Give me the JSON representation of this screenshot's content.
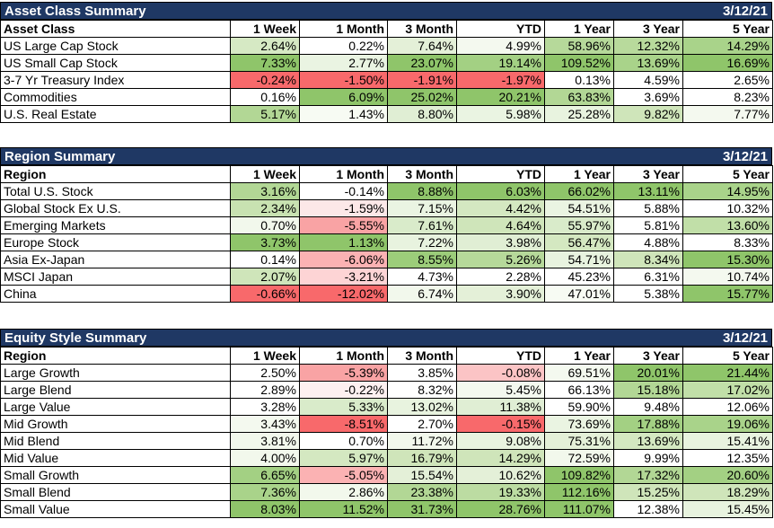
{
  "tables": [
    {
      "title": "Asset Class Summary",
      "date": "3/12/21",
      "headers": [
        "Asset Class",
        "1 Week",
        "1 Month",
        "3 Month",
        "YTD",
        "1 Year",
        "3 Year",
        "5 Year"
      ],
      "rows": [
        {
          "label": "US Large Cap Stock",
          "cells": [
            {
              "v": "2.64%",
              "c": "#d6e9c4"
            },
            {
              "v": "0.22%",
              "c": "#ffffff"
            },
            {
              "v": "7.64%",
              "c": "#e4f0d8"
            },
            {
              "v": "4.99%",
              "c": "#f4f9ef"
            },
            {
              "v": "58.96%",
              "c": "#b6d99a"
            },
            {
              "v": "12.32%",
              "c": "#b8da9c"
            },
            {
              "v": "14.29%",
              "c": "#a9d38a"
            }
          ]
        },
        {
          "label": "US Small Cap Stock",
          "cells": [
            {
              "v": "7.33%",
              "c": "#8fc56a"
            },
            {
              "v": "2.77%",
              "c": "#eaf4e2"
            },
            {
              "v": "23.07%",
              "c": "#8fc56a"
            },
            {
              "v": "19.14%",
              "c": "#a3d083"
            },
            {
              "v": "109.52%",
              "c": "#8fc56a"
            },
            {
              "v": "13.69%",
              "c": "#a9d38a"
            },
            {
              "v": "16.69%",
              "c": "#8fc56a"
            }
          ]
        },
        {
          "label": "3-7 Yr Treasury Index",
          "cells": [
            {
              "v": "-0.24%",
              "c": "#f8696b"
            },
            {
              "v": "-1.50%",
              "c": "#f8696b"
            },
            {
              "v": "-1.91%",
              "c": "#f8696b"
            },
            {
              "v": "-1.97%",
              "c": "#f8696b"
            },
            {
              "v": "0.13%",
              "c": "#ffffff"
            },
            {
              "v": "4.59%",
              "c": "#ffffff"
            },
            {
              "v": "2.65%",
              "c": "#ffffff"
            }
          ]
        },
        {
          "label": "Commodities",
          "cells": [
            {
              "v": "0.16%",
              "c": "#ffffff"
            },
            {
              "v": "6.09%",
              "c": "#8fc56a"
            },
            {
              "v": "25.02%",
              "c": "#8fc56a"
            },
            {
              "v": "20.21%",
              "c": "#8fc56a"
            },
            {
              "v": "63.83%",
              "c": "#b2d795"
            },
            {
              "v": "3.69%",
              "c": "#ffffff"
            },
            {
              "v": "8.23%",
              "c": "#ffffff"
            }
          ]
        },
        {
          "label": "U.S. Real Estate",
          "cells": [
            {
              "v": "5.17%",
              "c": "#b2d795"
            },
            {
              "v": "1.43%",
              "c": "#f7fbf3"
            },
            {
              "v": "8.80%",
              "c": "#e0eed4"
            },
            {
              "v": "5.98%",
              "c": "#eaf4e2"
            },
            {
              "v": "25.28%",
              "c": "#e8f3df"
            },
            {
              "v": "9.82%",
              "c": "#cfe5ba"
            },
            {
              "v": "7.77%",
              "c": "#f4f9ef"
            }
          ]
        }
      ]
    },
    {
      "title": "Region Summary",
      "date": "3/12/21",
      "headers": [
        "Region",
        "1 Week",
        "1 Month",
        "3 Month",
        "YTD",
        "1 Year",
        "3 Year",
        "5 Year"
      ],
      "rows": [
        {
          "label": "Total U.S. Stock",
          "cells": [
            {
              "v": "3.16%",
              "c": "#b2d795"
            },
            {
              "v": "-0.14%",
              "c": "#ffffff"
            },
            {
              "v": "8.88%",
              "c": "#8fc56a"
            },
            {
              "v": "6.03%",
              "c": "#8fc56a"
            },
            {
              "v": "66.02%",
              "c": "#8fc56a"
            },
            {
              "v": "13.11%",
              "c": "#8fc56a"
            },
            {
              "v": "14.95%",
              "c": "#a9d38a"
            }
          ]
        },
        {
          "label": "Global Stock Ex U.S.",
          "cells": [
            {
              "v": "2.34%",
              "c": "#c8e2b1"
            },
            {
              "v": "-1.59%",
              "c": "#fce8e8"
            },
            {
              "v": "7.15%",
              "c": "#eaf4e2"
            },
            {
              "v": "4.42%",
              "c": "#d4e8c1"
            },
            {
              "v": "54.51%",
              "c": "#eaf4e2"
            },
            {
              "v": "5.88%",
              "c": "#ffffff"
            },
            {
              "v": "10.32%",
              "c": "#ffffff"
            }
          ]
        },
        {
          "label": "Emerging Markets",
          "cells": [
            {
              "v": "0.70%",
              "c": "#f2f8ec"
            },
            {
              "v": "-5.55%",
              "c": "#f9a3a4"
            },
            {
              "v": "7.61%",
              "c": "#d9ebca"
            },
            {
              "v": "4.64%",
              "c": "#cfe5ba"
            },
            {
              "v": "55.97%",
              "c": "#d9ebca"
            },
            {
              "v": "5.81%",
              "c": "#ffffff"
            },
            {
              "v": "13.60%",
              "c": "#c1dfa8"
            }
          ]
        },
        {
          "label": "Europe Stock",
          "cells": [
            {
              "v": "3.73%",
              "c": "#8fc56a"
            },
            {
              "v": "1.13%",
              "c": "#8fc56a"
            },
            {
              "v": "7.22%",
              "c": "#e8f3df"
            },
            {
              "v": "3.98%",
              "c": "#e0eed4"
            },
            {
              "v": "56.47%",
              "c": "#d4e8c1"
            },
            {
              "v": "4.88%",
              "c": "#ffffff"
            },
            {
              "v": "8.33%",
              "c": "#ffffff"
            }
          ]
        },
        {
          "label": "Asia Ex-Japan",
          "cells": [
            {
              "v": "0.14%",
              "c": "#ffffff"
            },
            {
              "v": "-6.06%",
              "c": "#fbb2b3"
            },
            {
              "v": "8.55%",
              "c": "#9ccd7a"
            },
            {
              "v": "5.26%",
              "c": "#b6d99a"
            },
            {
              "v": "54.71%",
              "c": "#e8f3df"
            },
            {
              "v": "8.34%",
              "c": "#cfe5ba"
            },
            {
              "v": "15.30%",
              "c": "#8fc56a"
            }
          ]
        },
        {
          "label": "MSCI Japan",
          "cells": [
            {
              "v": "2.07%",
              "c": "#cfe5ba"
            },
            {
              "v": "-3.21%",
              "c": "#fdd4d5"
            },
            {
              "v": "4.73%",
              "c": "#ffffff"
            },
            {
              "v": "2.28%",
              "c": "#ffffff"
            },
            {
              "v": "45.23%",
              "c": "#ffffff"
            },
            {
              "v": "6.31%",
              "c": "#ffffff"
            },
            {
              "v": "10.74%",
              "c": "#f4f9ef"
            }
          ]
        },
        {
          "label": "China",
          "cells": [
            {
              "v": "-0.66%",
              "c": "#f8696b"
            },
            {
              "v": "-12.02%",
              "c": "#f8696b"
            },
            {
              "v": "6.74%",
              "c": "#f2f8ec"
            },
            {
              "v": "3.90%",
              "c": "#e4f0d8"
            },
            {
              "v": "47.01%",
              "c": "#f7fbf3"
            },
            {
              "v": "5.38%",
              "c": "#ffffff"
            },
            {
              "v": "15.77%",
              "c": "#8fc56a"
            }
          ]
        }
      ]
    },
    {
      "title": "Equity Style Summary",
      "date": "3/12/21",
      "headers": [
        "Region",
        "1 Week",
        "1 Month",
        "3 Month",
        "YTD",
        "1 Year",
        "3 Year",
        "5 Year"
      ],
      "rows": [
        {
          "label": "Large Growth",
          "cells": [
            {
              "v": "2.50%",
              "c": "#ffffff"
            },
            {
              "v": "-5.39%",
              "c": "#f9a3a4"
            },
            {
              "v": "3.85%",
              "c": "#ffffff"
            },
            {
              "v": "-0.08%",
              "c": "#fbc4c5"
            },
            {
              "v": "69.51%",
              "c": "#f4f9ef"
            },
            {
              "v": "20.01%",
              "c": "#8fc56a"
            },
            {
              "v": "21.44%",
              "c": "#8fc56a"
            }
          ]
        },
        {
          "label": "Large Blend",
          "cells": [
            {
              "v": "2.89%",
              "c": "#ffffff"
            },
            {
              "v": "-0.22%",
              "c": "#fdf0f0"
            },
            {
              "v": "8.32%",
              "c": "#ffffff"
            },
            {
              "v": "5.45%",
              "c": "#f4f9ef"
            },
            {
              "v": "66.13%",
              "c": "#ffffff"
            },
            {
              "v": "15.18%",
              "c": "#b2d795"
            },
            {
              "v": "17.02%",
              "c": "#c1dfa8"
            }
          ]
        },
        {
          "label": "Large Value",
          "cells": [
            {
              "v": "3.28%",
              "c": "#ffffff"
            },
            {
              "v": "5.33%",
              "c": "#d9ebca"
            },
            {
              "v": "13.02%",
              "c": "#e8f3df"
            },
            {
              "v": "11.38%",
              "c": "#e0eed4"
            },
            {
              "v": "59.90%",
              "c": "#ffffff"
            },
            {
              "v": "9.48%",
              "c": "#ffffff"
            },
            {
              "v": "12.06%",
              "c": "#ffffff"
            }
          ]
        },
        {
          "label": "Mid Growth",
          "cells": [
            {
              "v": "3.43%",
              "c": "#f4f9ef"
            },
            {
              "v": "-8.51%",
              "c": "#f8696b"
            },
            {
              "v": "2.70%",
              "c": "#ffffff"
            },
            {
              "v": "-0.15%",
              "c": "#f8696b"
            },
            {
              "v": "73.69%",
              "c": "#eaf4e2"
            },
            {
              "v": "17.88%",
              "c": "#a3d083"
            },
            {
              "v": "19.06%",
              "c": "#a9d38a"
            }
          ]
        },
        {
          "label": "Mid Blend",
          "cells": [
            {
              "v": "3.81%",
              "c": "#f2f8ec"
            },
            {
              "v": "0.70%",
              "c": "#ffffff"
            },
            {
              "v": "11.72%",
              "c": "#f2f8ec"
            },
            {
              "v": "9.08%",
              "c": "#e8f3df"
            },
            {
              "v": "75.31%",
              "c": "#e4f0d8"
            },
            {
              "v": "13.69%",
              "c": "#d4e8c1"
            },
            {
              "v": "15.41%",
              "c": "#e8f3df"
            }
          ]
        },
        {
          "label": "Mid Value",
          "cells": [
            {
              "v": "4.00%",
              "c": "#f2f8ec"
            },
            {
              "v": "5.97%",
              "c": "#d4e8c1"
            },
            {
              "v": "16.79%",
              "c": "#cfe5ba"
            },
            {
              "v": "14.29%",
              "c": "#cfe5ba"
            },
            {
              "v": "72.59%",
              "c": "#f2f8ec"
            },
            {
              "v": "9.99%",
              "c": "#ffffff"
            },
            {
              "v": "12.35%",
              "c": "#ffffff"
            }
          ]
        },
        {
          "label": "Small Growth",
          "cells": [
            {
              "v": "6.65%",
              "c": "#a3d083"
            },
            {
              "v": "-5.05%",
              "c": "#fbb2b3"
            },
            {
              "v": "15.54%",
              "c": "#e4f0d8"
            },
            {
              "v": "10.62%",
              "c": "#e4f0d8"
            },
            {
              "v": "109.82%",
              "c": "#8fc56a"
            },
            {
              "v": "17.32%",
              "c": "#b2d795"
            },
            {
              "v": "20.60%",
              "c": "#a3d083"
            }
          ]
        },
        {
          "label": "Small Blend",
          "cells": [
            {
              "v": "7.36%",
              "c": "#a9d38a"
            },
            {
              "v": "2.86%",
              "c": "#f2f8ec"
            },
            {
              "v": "23.38%",
              "c": "#b2d795"
            },
            {
              "v": "19.33%",
              "c": "#bcdca2"
            },
            {
              "v": "112.16%",
              "c": "#8fc56a"
            },
            {
              "v": "15.25%",
              "c": "#cfe5ba"
            },
            {
              "v": "18.29%",
              "c": "#cfe5ba"
            }
          ]
        },
        {
          "label": "Small Value",
          "cells": [
            {
              "v": "8.03%",
              "c": "#8fc56a"
            },
            {
              "v": "11.52%",
              "c": "#8fc56a"
            },
            {
              "v": "31.73%",
              "c": "#8fc56a"
            },
            {
              "v": "28.76%",
              "c": "#8fc56a"
            },
            {
              "v": "111.07%",
              "c": "#8fc56a"
            },
            {
              "v": "12.38%",
              "c": "#ffffff"
            },
            {
              "v": "15.45%",
              "c": "#e8f3df"
            }
          ]
        }
      ]
    }
  ]
}
